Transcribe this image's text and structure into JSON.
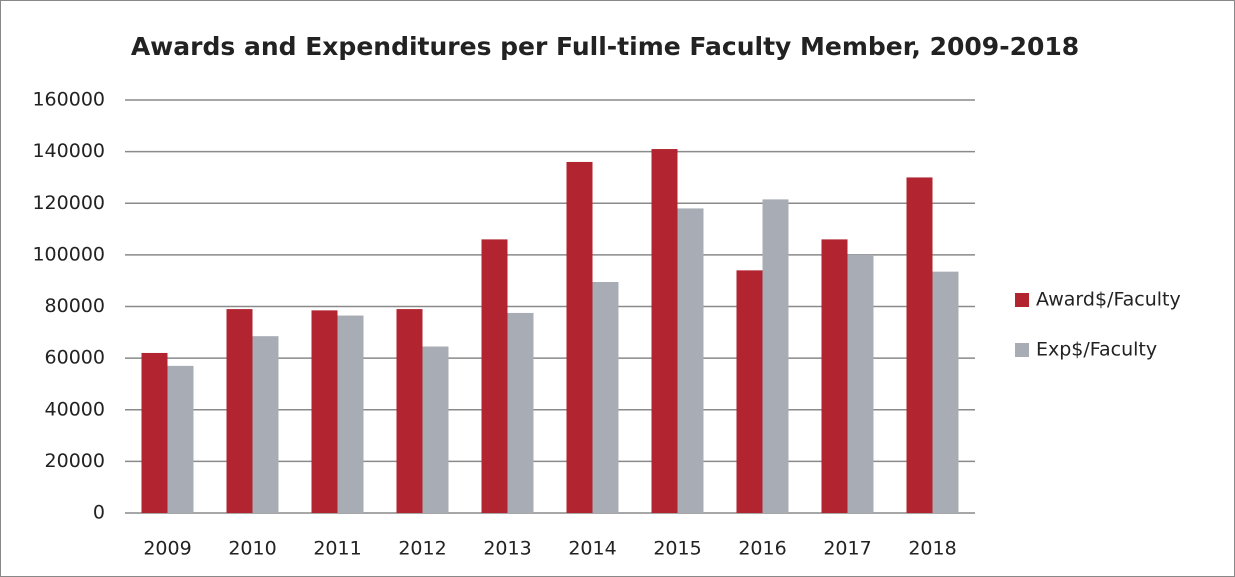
{
  "chart_data": {
    "type": "bar",
    "title": "Awards and Expenditures per Full-time Faculty Member, 2009-2018",
    "categories": [
      "2009",
      "2010",
      "2011",
      "2012",
      "2013",
      "2014",
      "2015",
      "2016",
      "2017",
      "2018"
    ],
    "series": [
      {
        "name": "Award$/Faculty",
        "color": "#b2242f",
        "values": [
          62000,
          79000,
          78500,
          79000,
          106000,
          136000,
          141000,
          94000,
          106000,
          130000
        ]
      },
      {
        "name": "Exp$/Faculty",
        "color": "#a8adb5",
        "values": [
          57000,
          68500,
          76500,
          64500,
          77500,
          89500,
          118000,
          121500,
          100000,
          93500
        ]
      }
    ],
    "ylim": [
      0,
      160000
    ],
    "yticks": [
      0,
      20000,
      40000,
      60000,
      80000,
      100000,
      120000,
      140000,
      160000
    ],
    "grid": true,
    "legend": "right"
  }
}
